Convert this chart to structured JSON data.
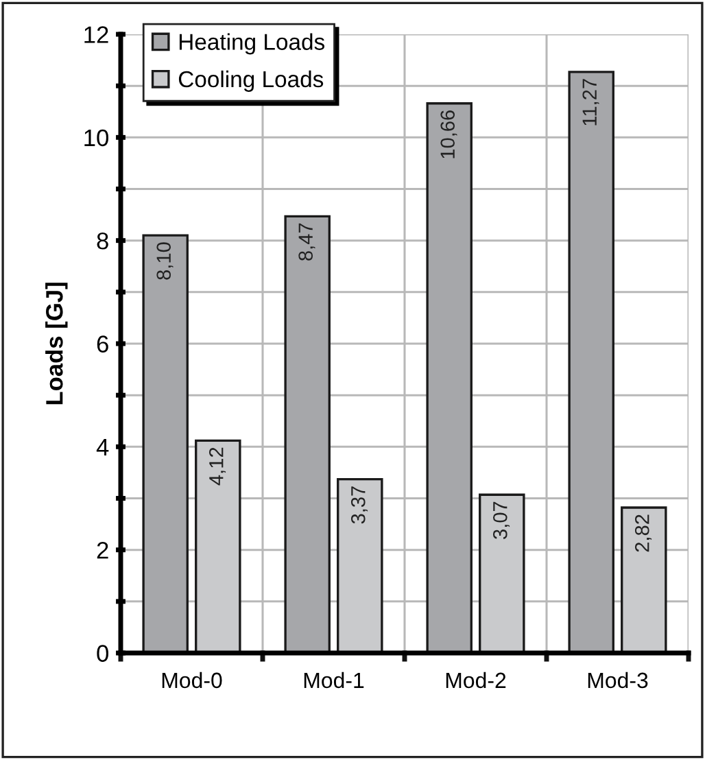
{
  "chart_data": {
    "type": "bar",
    "ylabel": "Loads [GJ]",
    "categories": [
      "Mod-0",
      "Mod-1",
      "Mod-2",
      "Mod-3"
    ],
    "series": [
      {
        "name": "Heating Loads",
        "color": "#a6a7aa",
        "values": [
          8.1,
          8.47,
          10.66,
          11.27
        ],
        "value_labels": [
          "8,10",
          "8,47",
          "10,66",
          "11,27"
        ]
      },
      {
        "name": "Cooling Loads",
        "color": "#c9cacc",
        "values": [
          4.12,
          3.37,
          3.07,
          2.82
        ],
        "value_labels": [
          "4,12",
          "3,37",
          "3,07",
          "2,82"
        ]
      }
    ],
    "ylim": [
      0,
      12
    ],
    "yticks": [
      0,
      {
        "value": 1,
        "label": null
      },
      2,
      {
        "value": 3,
        "label": null
      },
      4,
      {
        "value": 5,
        "label": null
      },
      6,
      {
        "value": 7,
        "label": null
      },
      8,
      {
        "value": 9,
        "label": null
      },
      10,
      {
        "value": 11,
        "label": null
      },
      12
    ],
    "grid": true,
    "legend": "top left"
  }
}
